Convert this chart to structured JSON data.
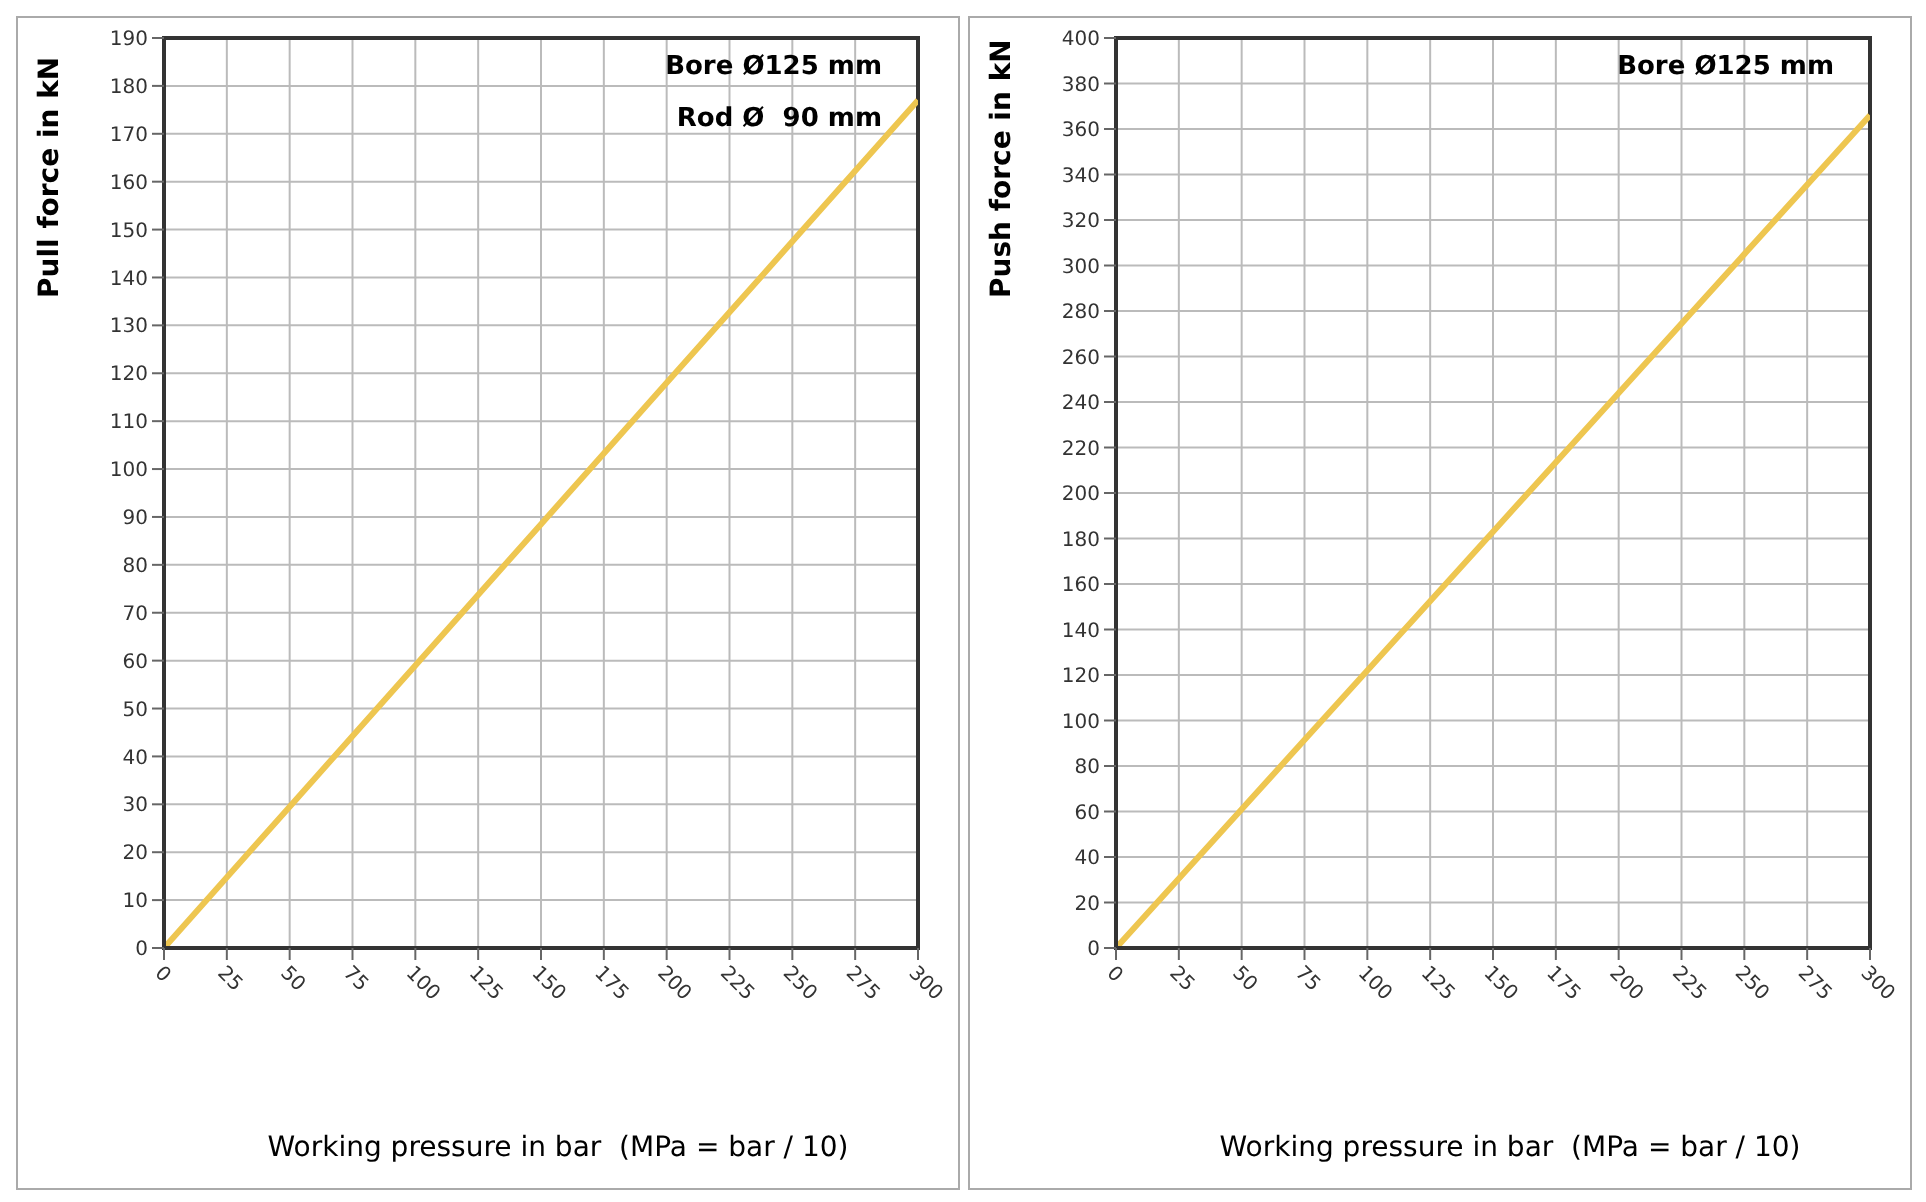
{
  "chart_data": [
    {
      "type": "line",
      "x": [
        0,
        50,
        100,
        150,
        200,
        250,
        300
      ],
      "series": [
        {
          "color": "#eec650",
          "values": [
            0,
            29.5,
            59,
            88.5,
            118,
            147.5,
            177
          ]
        }
      ],
      "xlabel": "Working pressure in bar  (MPa = bar / 10)",
      "ylabel": "Pull force in kN",
      "annotations": [
        "Bore Ø125 mm",
        "Rod Ø  90 mm"
      ],
      "xlim": [
        0,
        300
      ],
      "xticks": [
        0,
        25,
        50,
        75,
        100,
        125,
        150,
        175,
        200,
        225,
        250,
        275,
        300
      ],
      "ylim": [
        0,
        190
      ],
      "yticks": [
        0,
        10,
        20,
        30,
        40,
        50,
        60,
        70,
        80,
        90,
        100,
        110,
        120,
        130,
        140,
        150,
        160,
        170,
        180,
        190
      ],
      "grid": true,
      "legend": false,
      "marker": "none"
    },
    {
      "type": "line",
      "x": [
        0,
        50,
        100,
        150,
        200,
        250,
        300
      ],
      "series": [
        {
          "color": "#eec650",
          "values": [
            0,
            61,
            122,
            183,
            244,
            305,
            366
          ]
        }
      ],
      "xlabel": "Working pressure in bar  (MPa = bar / 10)",
      "ylabel": "Push force in kN",
      "annotations": [
        "Bore Ø125 mm"
      ],
      "xlim": [
        0,
        300
      ],
      "xticks": [
        0,
        25,
        50,
        75,
        100,
        125,
        150,
        175,
        200,
        225,
        250,
        275,
        300
      ],
      "ylim": [
        0,
        400
      ],
      "yticks": [
        0,
        20,
        40,
        60,
        80,
        100,
        120,
        140,
        160,
        180,
        200,
        220,
        240,
        260,
        280,
        300,
        320,
        340,
        360,
        380,
        400
      ],
      "grid": true,
      "legend": false,
      "marker": "none"
    }
  ]
}
